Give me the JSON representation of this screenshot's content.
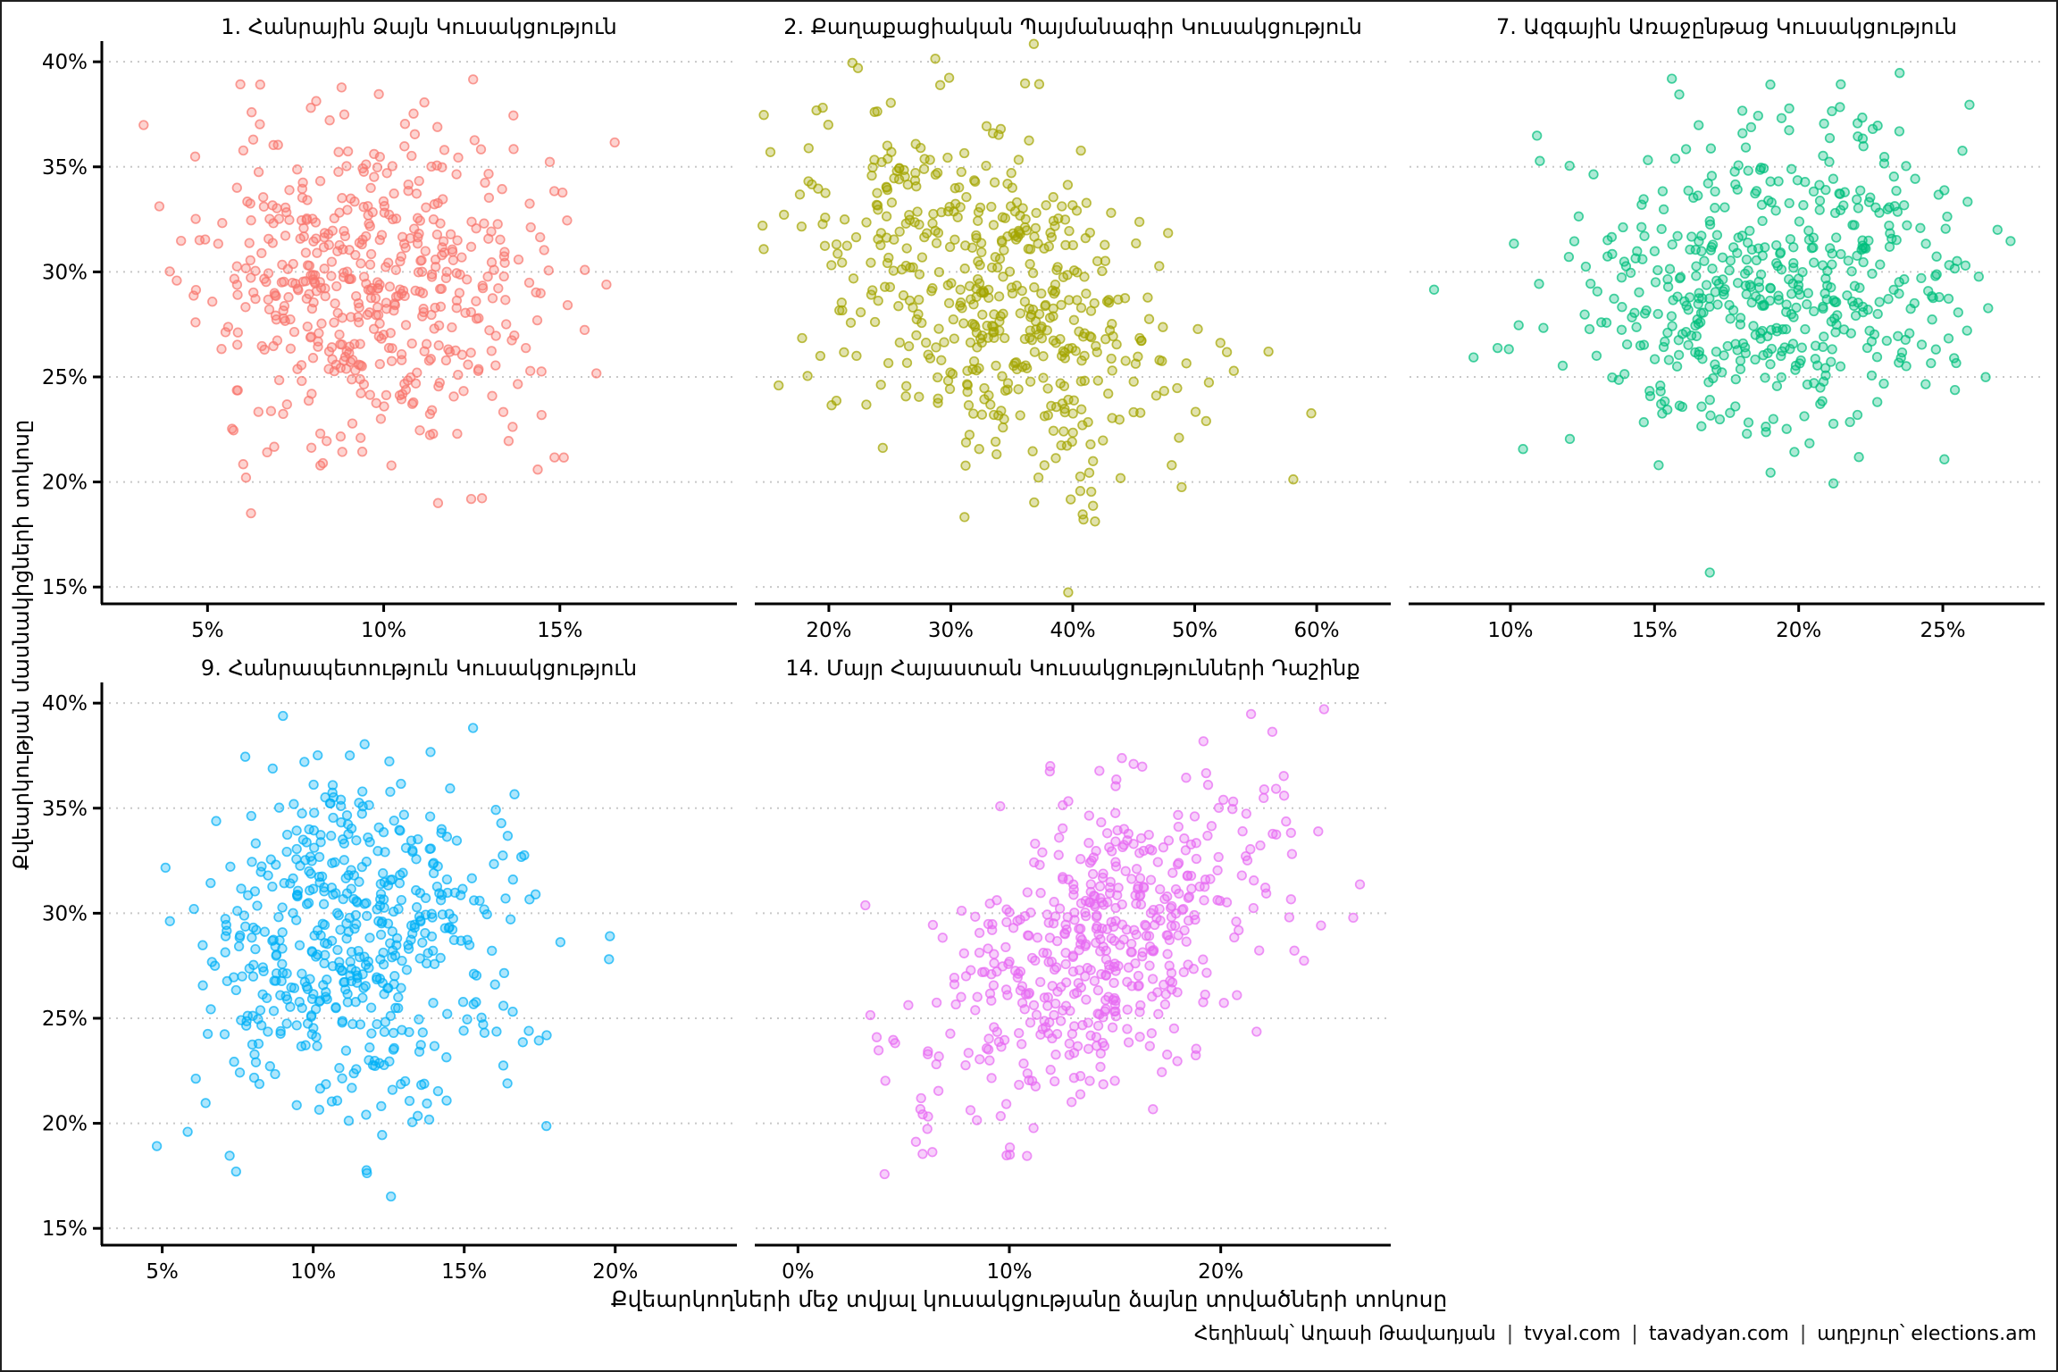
{
  "figure": {
    "y_axis_label": "Քվեարկության մասնակիցների տոկոսը",
    "x_axis_label": "Քվեարկողների մեջ տվյալ կուսակցությանը ձայնը տրվածների տոկոսը",
    "footer": {
      "separator": "|",
      "author": "Հեղինակ՝ Աղասի Թավադյան",
      "site1": "tvyal.com",
      "site2": "tavadyan.com",
      "source": "աղբյուր՝ elections.am"
    }
  },
  "style": {
    "background": "#ffffff",
    "grid_color": "#c8c8c8",
    "axis_color": "#000000",
    "text_color": "#000000",
    "point_fill_opacity": 0.32,
    "point_stroke_opacity": 0.72,
    "point_radius": 4.8
  },
  "chart_data": [
    {
      "type": "scatter",
      "title": "1. Հանրային Ձայն Կուսակցություն",
      "color": "#F8766D",
      "xlim": [
        2,
        20
      ],
      "ylim": [
        14.2,
        40.9
      ],
      "x_tick_values": [
        5,
        10,
        15
      ],
      "x_tick_labels": [
        "5%",
        "10%",
        "15%"
      ],
      "y_tick_values": [
        15,
        20,
        25,
        30,
        35,
        40
      ],
      "y_tick_labels": [
        "15%",
        "20%",
        "25%",
        "30%",
        "35%",
        "40%"
      ],
      "show_y_labels": true,
      "n_points": 520,
      "distribution": {
        "x_mean": 9.6,
        "x_sd": 2.4,
        "y_mean": 29.6,
        "y_sd": 4.0,
        "corr": -0.05
      },
      "seed": 11
    },
    {
      "type": "scatter",
      "title": "2. Քաղաքացիական Պայմանագիր Կուսակցություն",
      "color": "#A3A500",
      "xlim": [
        14,
        66
      ],
      "ylim": [
        14.2,
        40.9
      ],
      "x_tick_values": [
        20,
        30,
        40,
        50,
        60
      ],
      "x_tick_labels": [
        "20%",
        "30%",
        "40%",
        "50%",
        "60%"
      ],
      "y_tick_values": [
        15,
        20,
        25,
        30,
        35,
        40
      ],
      "y_tick_labels": [
        "15%",
        "20%",
        "25%",
        "30%",
        "35%",
        "40%"
      ],
      "show_y_labels": false,
      "n_points": 520,
      "distribution": {
        "x_mean": 33.0,
        "x_sd": 8.0,
        "y_mean": 29.0,
        "y_sd": 4.2,
        "corr": -0.4
      },
      "seed": 22
    },
    {
      "type": "scatter",
      "title": "7. Ազգային Առաջընթաց Կուսակցություն",
      "color": "#00BF7D",
      "xlim": [
        6.5,
        28.5
      ],
      "ylim": [
        14.2,
        40.9
      ],
      "x_tick_values": [
        10,
        15,
        20,
        25
      ],
      "x_tick_labels": [
        "10%",
        "15%",
        "20%",
        "25%"
      ],
      "y_tick_values": [
        15,
        20,
        25,
        30,
        35,
        40
      ],
      "y_tick_labels": [
        "15%",
        "20%",
        "25%",
        "30%",
        "35%",
        "40%"
      ],
      "show_y_labels": false,
      "n_points": 520,
      "distribution": {
        "x_mean": 19.3,
        "x_sd": 3.4,
        "y_mean": 29.3,
        "y_sd": 4.0,
        "corr": 0.05
      },
      "seed": 77
    },
    {
      "type": "scatter",
      "title": "9. Հանրապետություն Կուսակցություն",
      "color": "#00B0F6",
      "xlim": [
        3,
        24
      ],
      "ylim": [
        14.2,
        40.9
      ],
      "x_tick_values": [
        5,
        10,
        15,
        20
      ],
      "x_tick_labels": [
        "5%",
        "10%",
        "15%",
        "20%"
      ],
      "y_tick_values": [
        15,
        20,
        25,
        30,
        35,
        40
      ],
      "y_tick_labels": [
        "15%",
        "20%",
        "25%",
        "30%",
        "35%",
        "40%"
      ],
      "show_y_labels": true,
      "n_points": 520,
      "distribution": {
        "x_mean": 11.2,
        "x_sd": 2.7,
        "y_mean": 28.6,
        "y_sd": 4.2,
        "corr": 0.05
      },
      "seed": 99
    },
    {
      "type": "scatter",
      "title": "14. Մայր Հայաստան Կուսակցությունների Դաշինք",
      "color": "#E76BF3",
      "xlim": [
        -2,
        28
      ],
      "ylim": [
        14.2,
        40.9
      ],
      "x_tick_values": [
        0,
        10,
        20
      ],
      "x_tick_labels": [
        "0%",
        "10%",
        "20%"
      ],
      "y_tick_values": [
        15,
        20,
        25,
        30,
        35,
        40
      ],
      "y_tick_labels": [
        "15%",
        "20%",
        "25%",
        "30%",
        "35%",
        "40%"
      ],
      "show_y_labels": false,
      "n_points": 520,
      "distribution": {
        "x_mean": 14.2,
        "x_sd": 4.3,
        "y_mean": 28.6,
        "y_sd": 4.2,
        "corr": 0.55
      },
      "seed": 141
    }
  ]
}
